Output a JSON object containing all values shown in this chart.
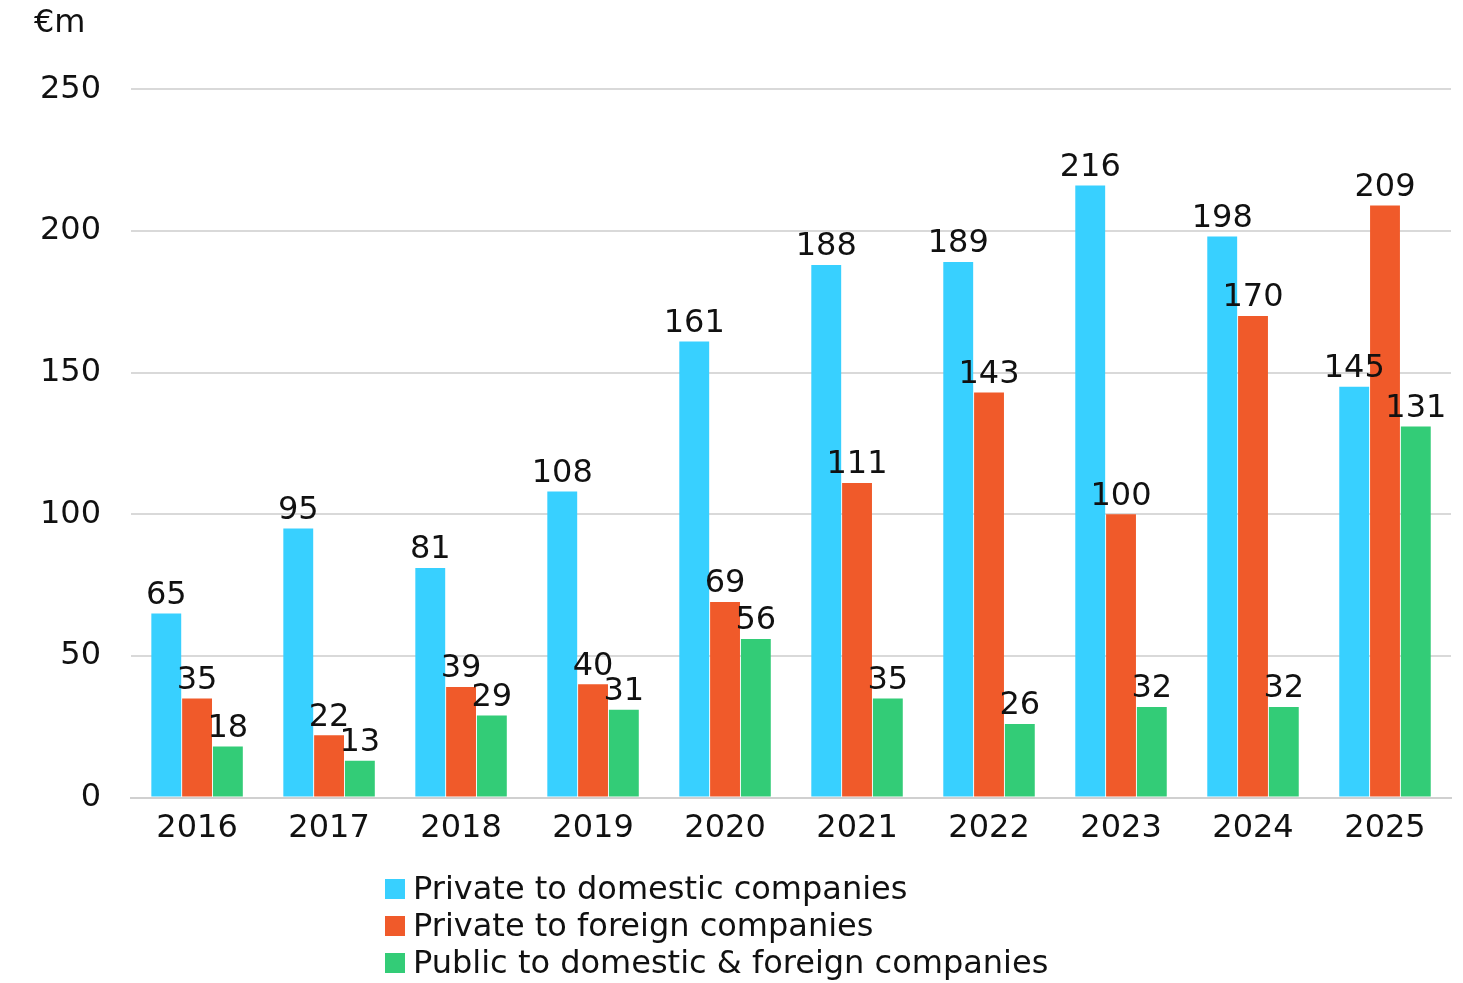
{
  "chart_data": {
    "type": "bar",
    "ylabel": "€m",
    "categories": [
      "2016",
      "2017",
      "2018",
      "2019",
      "2020",
      "2021",
      "2022",
      "2023",
      "2024",
      "2025"
    ],
    "series": [
      {
        "name": "Private to domestic companies",
        "color": "#38d0ff",
        "values": [
          65,
          95,
          81,
          108,
          161,
          188,
          189,
          216,
          198,
          145
        ]
      },
      {
        "name": "Private to foreign companies",
        "color": "#f05a2a",
        "values": [
          35,
          22,
          39,
          40,
          69,
          111,
          143,
          100,
          170,
          209
        ]
      },
      {
        "name": "Public to domestic & foreign companies",
        "color": "#33cc77",
        "values": [
          18,
          13,
          29,
          31,
          56,
          35,
          26,
          32,
          32,
          131
        ]
      }
    ],
    "ylim": [
      0,
      250
    ],
    "yticks": [
      0,
      50,
      100,
      150,
      200,
      250
    ],
    "grid": "y",
    "legend": "bottom",
    "data_labels": true
  }
}
